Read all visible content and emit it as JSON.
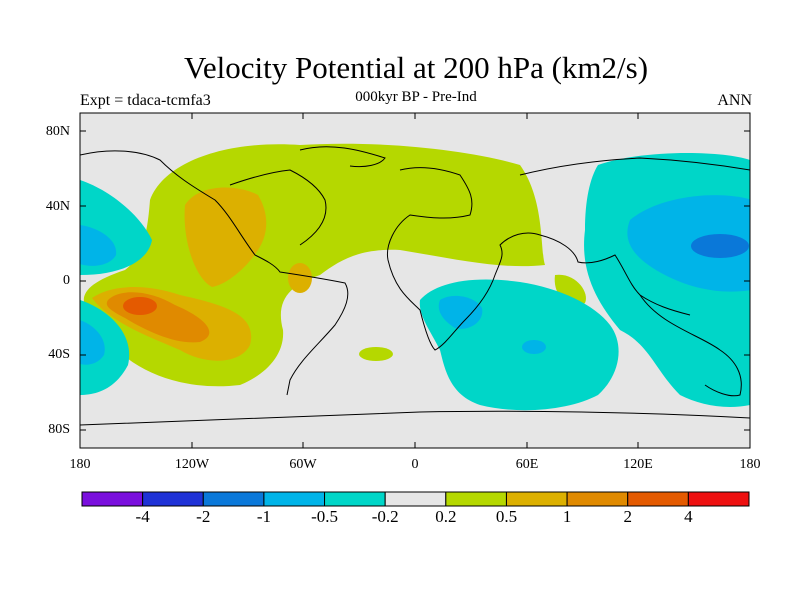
{
  "title": "Velocity Potential at 200 hPa (km2/s)",
  "subtitle_left": "Expt = tdaca-tcmfa3",
  "subtitle_center": "000kyr BP - Pre-Ind",
  "subtitle_right": "ANN",
  "axes": {
    "y_ticks": [
      "80N",
      "40N",
      "0",
      "40S",
      "80S"
    ],
    "x_ticks": [
      "180",
      "120W",
      "60W",
      "0",
      "60E",
      "120E",
      "180"
    ]
  },
  "colorbar": {
    "colors": [
      "#7a0fdd",
      "#1f32d6",
      "#0a78d9",
      "#00b4e8",
      "#00d6c8",
      "#e6e6e6",
      "#b5d800",
      "#dcb000",
      "#e08a00",
      "#e45a00",
      "#ee1010"
    ],
    "labels": [
      "-4",
      "-2",
      "-1",
      "-0.5",
      "-0.2",
      "0.2",
      "0.5",
      "1",
      "2",
      "4"
    ]
  },
  "colors": {
    "neutral": "#e6e6e6",
    "pos_weak": "#b5d800",
    "pos_mid": "#dcb000",
    "pos_strong": "#e08a00",
    "pos_max": "#e45a00",
    "neg_weak": "#00d6c8",
    "neg_mid": "#00b4e8",
    "neg_strong": "#0a78d9"
  }
}
